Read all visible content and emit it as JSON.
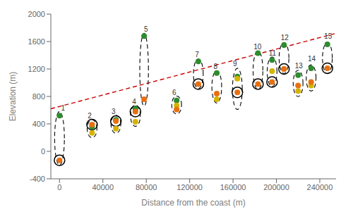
{
  "chart_data": {
    "type": "scatter",
    "xlabel": "Distance from the coast (m)",
    "ylabel": "Elevation (m)",
    "xlim": [
      -8000,
      255000
    ],
    "ylim": [
      -400,
      2000
    ],
    "xticks": [
      0,
      40000,
      80000,
      120000,
      160000,
      200000,
      240000
    ],
    "yticks": [
      -400,
      0,
      400,
      800,
      1200,
      1600,
      2000
    ],
    "grid": false,
    "series": [
      {
        "type": "line",
        "color": "#cc0000",
        "line_style": "dashed",
        "x": [
          -8000,
          255000
        ],
        "values": [
          620,
          1720
        ]
      },
      {
        "type": "ellipse",
        "color": "black",
        "line_style": "dashed",
        "ellipses": [
          {
            "cx": 0,
            "cy": 190,
            "w": 9000,
            "h": 780
          },
          {
            "cx": 30000,
            "cy": 330,
            "w": 9000,
            "h": 260
          },
          {
            "cx": 52000,
            "cy": 395,
            "w": 9000,
            "h": 260
          },
          {
            "cx": 70000,
            "cy": 520,
            "w": 9000,
            "h": 310
          },
          {
            "cx": 78000,
            "cy": 1190,
            "w": 8000,
            "h": 1060
          },
          {
            "cx": 108000,
            "cy": 675,
            "w": 9000,
            "h": 260
          },
          {
            "cx": 128000,
            "cy": 1130,
            "w": 9000,
            "h": 430
          },
          {
            "cx": 145000,
            "cy": 940,
            "w": 9000,
            "h": 470
          },
          {
            "cx": 164000,
            "cy": 910,
            "w": 9000,
            "h": 600
          },
          {
            "cx": 183000,
            "cy": 1180,
            "w": 9000,
            "h": 560
          },
          {
            "cx": 196000,
            "cy": 1160,
            "w": 9000,
            "h": 430
          },
          {
            "cx": 207000,
            "cy": 1360,
            "w": 9000,
            "h": 450
          },
          {
            "cx": 220000,
            "cy": 990,
            "w": 9000,
            "h": 380
          },
          {
            "cx": 232000,
            "cy": 1070,
            "w": 9000,
            "h": 380
          },
          {
            "cx": 247000,
            "cy": 1360,
            "w": 9000,
            "h": 450
          }
        ]
      },
      {
        "type": "scatter",
        "marker": "ring",
        "color": "black",
        "x": [
          0,
          30000,
          52000,
          70000,
          128000,
          164000,
          183000,
          196000,
          207000,
          247000
        ],
        "values": [
          -130,
          390,
          440,
          580,
          980,
          860,
          980,
          1010,
          1200,
          1210
        ]
      },
      {
        "type": "scatter",
        "marker": "circle",
        "color": "#2d8c2d",
        "x": [
          0,
          30000,
          52000,
          70000,
          78000,
          108000,
          128000,
          145000,
          164000,
          183000,
          196000,
          207000,
          220000,
          232000,
          247000
        ],
        "values": [
          520,
          360,
          460,
          620,
          1680,
          740,
          1310,
          1140,
          1090,
          1430,
          1330,
          1550,
          1110,
          1210,
          1560
        ]
      },
      {
        "type": "scatter",
        "marker": "circle",
        "color": "#d4b400",
        "x": [
          30000,
          52000,
          70000,
          108000,
          145000,
          164000,
          196000,
          207000,
          220000,
          232000
        ],
        "values": [
          270,
          330,
          430,
          670,
          760,
          1060,
          1170,
          1200,
          880,
          960
        ]
      },
      {
        "type": "scatter",
        "marker": "circle",
        "color": "#e87010",
        "x": [
          0,
          30000,
          52000,
          70000,
          78000,
          108000,
          128000,
          145000,
          164000,
          183000,
          196000,
          207000,
          220000,
          232000,
          247000
        ],
        "values": [
          -130,
          390,
          440,
          580,
          760,
          610,
          980,
          840,
          860,
          980,
          1010,
          1200,
          960,
          1010,
          1210
        ]
      }
    ],
    "annotations": [
      {
        "text": "1",
        "x": 1500,
        "y": 590
      },
      {
        "text": "2",
        "x": 26000,
        "y": 480
      },
      {
        "text": "3",
        "x": 48000,
        "y": 540
      },
      {
        "text": "4",
        "x": 67000,
        "y": 690
      },
      {
        "text": "5",
        "x": 78000,
        "y": 1740
      },
      {
        "text": "6",
        "x": 104000,
        "y": 820
      },
      {
        "text": "7",
        "x": 125000,
        "y": 1370
      },
      {
        "text": "8",
        "x": 142000,
        "y": 1200
      },
      {
        "text": "9",
        "x": 160000,
        "y": 1240
      },
      {
        "text": "10",
        "x": 179000,
        "y": 1490
      },
      {
        "text": "11",
        "x": 193000,
        "y": 1400
      },
      {
        "text": "12",
        "x": 204000,
        "y": 1620
      },
      {
        "text": "13",
        "x": 217000,
        "y": 1210
      },
      {
        "text": "14",
        "x": 229000,
        "y": 1310
      },
      {
        "text": "15",
        "x": 244000,
        "y": 1640
      }
    ]
  }
}
